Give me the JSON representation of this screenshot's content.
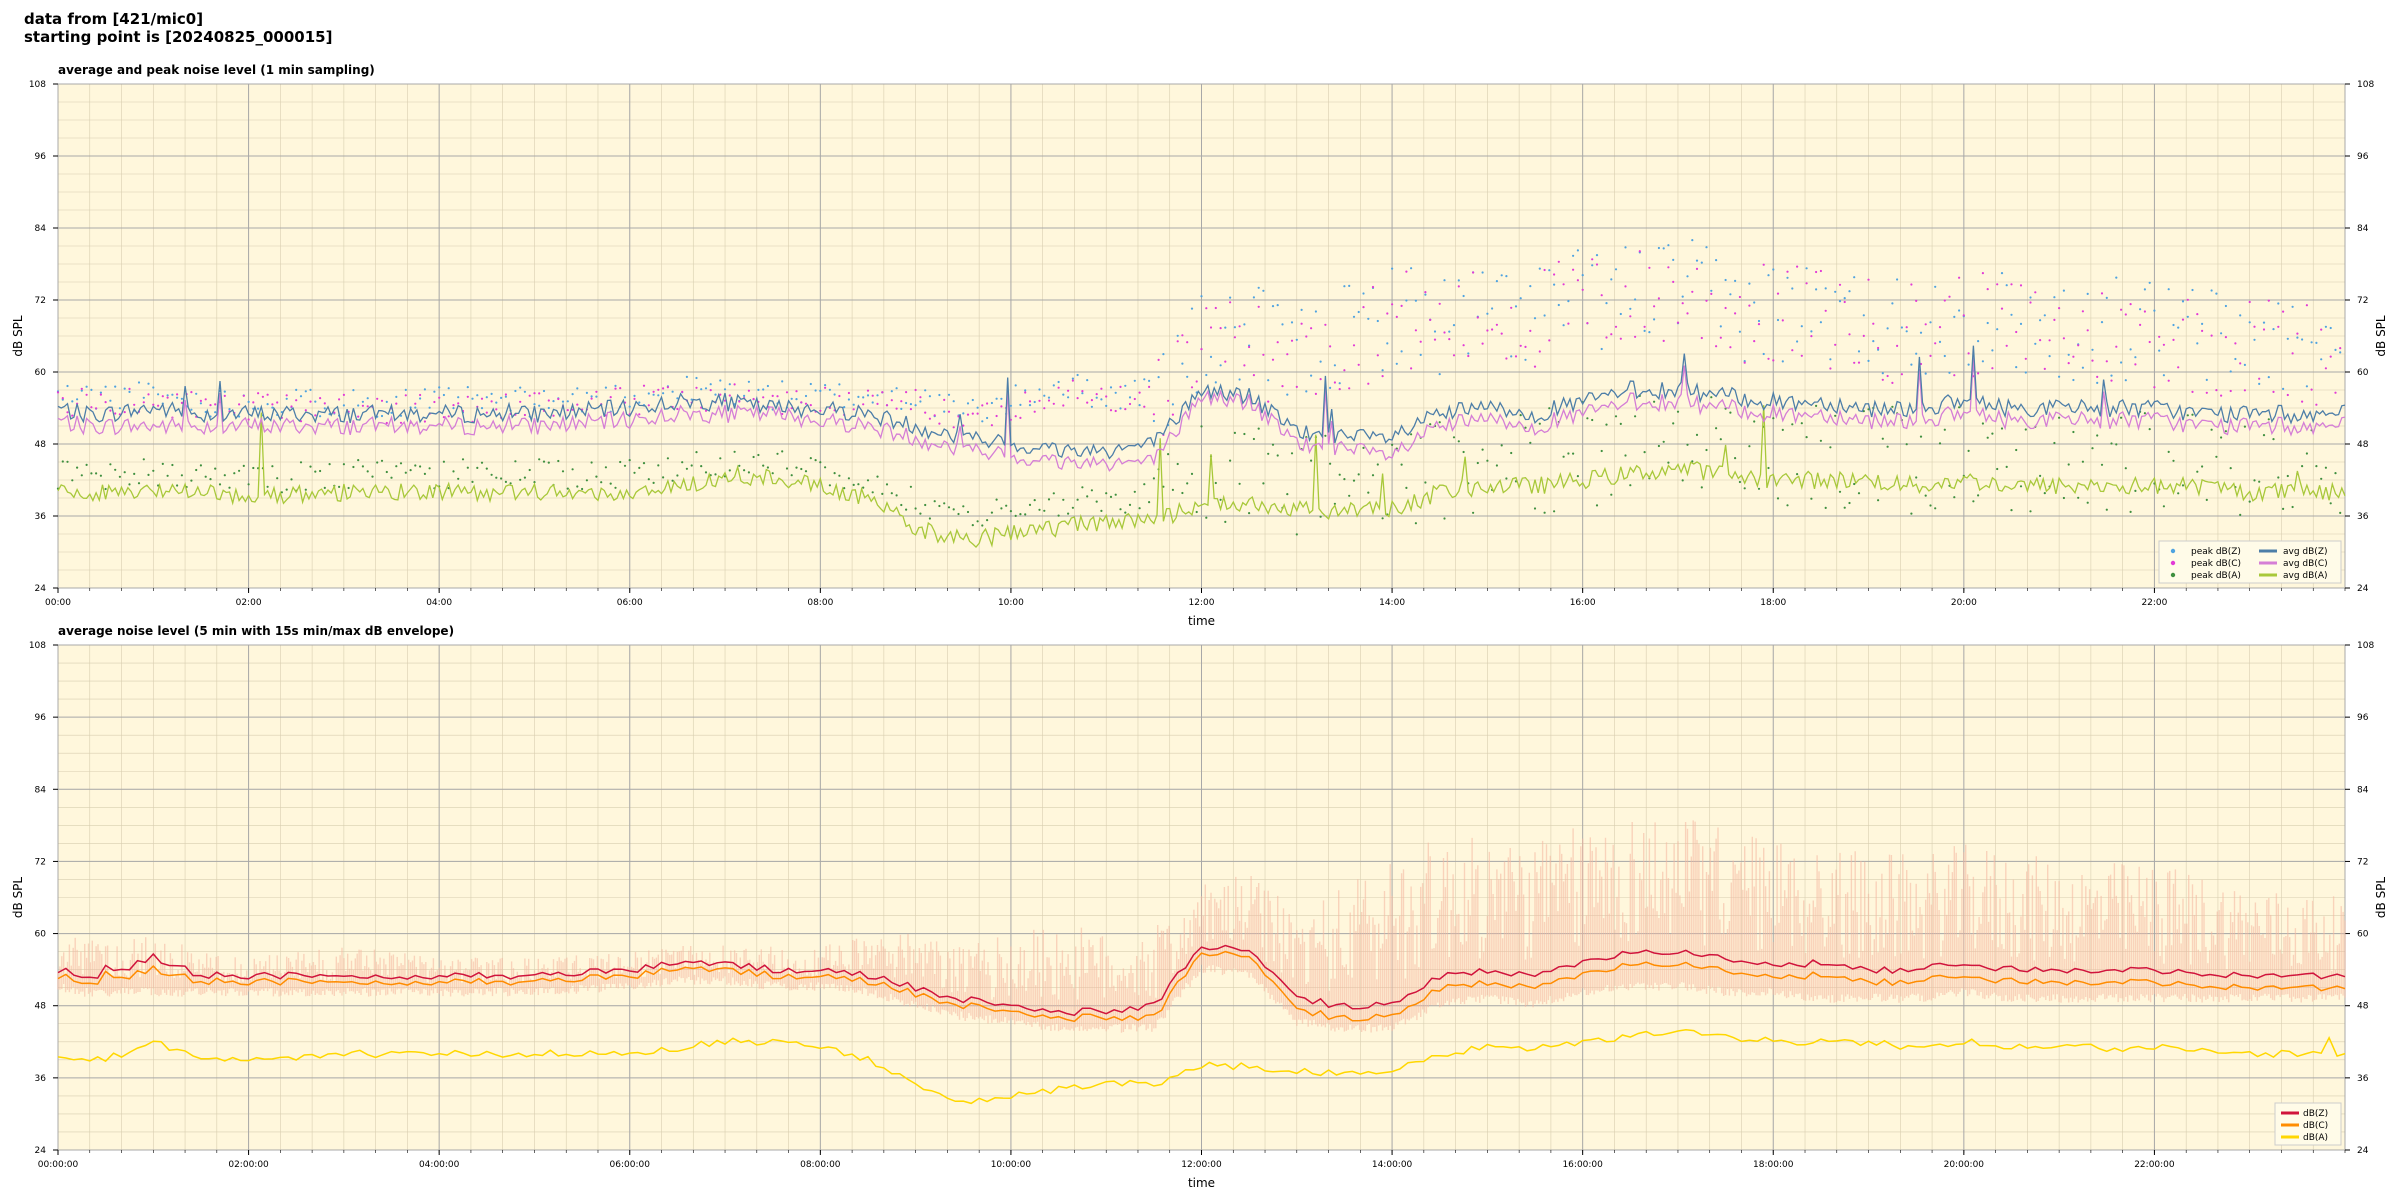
{
  "header": {
    "line1": "data from [421/mic0]",
    "line2": "starting point is [20240825_000015]"
  },
  "colors": {
    "plot_bg": "#fff7dc",
    "zpeak": "#4fa3e0",
    "cpeak": "#e23ad6",
    "apeak": "#3f8f3f",
    "zavg": "#4d7ea8",
    "cavg": "#d57ed6",
    "aavg": "#a8c83a",
    "dbz": "#d0143c",
    "dbc": "#ff8c00",
    "dba": "#ffd700",
    "envelope": "#f5b7a0"
  },
  "chart_data": [
    {
      "type": "line",
      "title": "average and peak noise level (1 min sampling)",
      "xlabel": "time",
      "ylabel": "dB SPL",
      "ylim": [
        24,
        108
      ],
      "xlim_hours": [
        0,
        24
      ],
      "yticks": [
        24,
        36,
        48,
        60,
        72,
        84,
        96,
        108
      ],
      "xticks": [
        "00:00",
        "02:00",
        "04:00",
        "06:00",
        "08:00",
        "10:00",
        "12:00",
        "14:00",
        "16:00",
        "18:00",
        "20:00",
        "22:00"
      ],
      "grid": true,
      "legend_position": "bottom-right",
      "legend": [
        "peak dB(Z)",
        "peak dB(C)",
        "peak dB(A)",
        "avg dB(Z)",
        "avg dB(C)",
        "avg dB(A)"
      ],
      "x_hours": [
        0,
        0.25,
        0.5,
        1,
        1.5,
        2,
        3,
        4,
        5,
        6,
        6.5,
        7,
        7.5,
        8,
        8.5,
        9,
        9.5,
        10,
        10.5,
        11,
        11.5,
        12,
        12.5,
        13,
        13.5,
        14,
        14.5,
        15,
        15.5,
        16,
        16.5,
        17,
        17.5,
        18,
        18.5,
        19,
        19.5,
        20,
        20.5,
        21,
        21.5,
        22,
        22.5,
        23,
        24
      ],
      "series": [
        {
          "name": "avg dB(Z)",
          "values": [
            54,
            53,
            53,
            54,
            53,
            53,
            53,
            53,
            53,
            54,
            55,
            55,
            54,
            54,
            53,
            51,
            49,
            48,
            47,
            47,
            48,
            57,
            56,
            50,
            49,
            49,
            53,
            54,
            53,
            55,
            57,
            57,
            56,
            55,
            55,
            54,
            54,
            55,
            54,
            54,
            54,
            54,
            53,
            53,
            53
          ]
        },
        {
          "name": "avg dB(C)",
          "values": [
            52,
            51,
            51,
            51,
            51,
            51,
            51,
            51,
            51,
            52,
            53,
            53,
            53,
            52,
            51,
            49,
            47,
            46,
            45,
            45,
            45,
            56,
            55,
            48,
            47,
            46,
            51,
            52,
            51,
            53,
            55,
            55,
            54,
            53,
            53,
            52,
            52,
            53,
            52,
            52,
            52,
            52,
            51,
            51,
            51
          ]
        },
        {
          "name": "avg dB(A)",
          "values": [
            40,
            40,
            40,
            40,
            40,
            39,
            40,
            40,
            40,
            40,
            41,
            42,
            42,
            41,
            39,
            34,
            32,
            33,
            34,
            35,
            35,
            38,
            38,
            37,
            37,
            37,
            40,
            41,
            41,
            42,
            43,
            44,
            43,
            42,
            42,
            42,
            41,
            42,
            41,
            41,
            41,
            41,
            41,
            40,
            40
          ]
        },
        {
          "name": "peak dB(Z)",
          "values": [
            56,
            56,
            56,
            56,
            55,
            55,
            55,
            55,
            55,
            56,
            57,
            57,
            56,
            56,
            56,
            56,
            53,
            55,
            58,
            56,
            57,
            64,
            66,
            62,
            66,
            70,
            68,
            70,
            70,
            72,
            73,
            74,
            71,
            70,
            70,
            68,
            68,
            69,
            68,
            67,
            67,
            67,
            66,
            65,
            64
          ]
        },
        {
          "name": "peak dB(C)",
          "values": [
            55,
            55,
            55,
            55,
            54,
            54,
            54,
            54,
            54,
            55,
            56,
            56,
            55,
            55,
            55,
            55,
            52,
            54,
            57,
            55,
            56,
            63,
            65,
            61,
            65,
            69,
            67,
            69,
            69,
            71,
            72,
            73,
            70,
            69,
            69,
            67,
            67,
            68,
            67,
            66,
            66,
            66,
            65,
            64,
            63
          ]
        },
        {
          "name": "peak dB(A)",
          "values": [
            43,
            43,
            43,
            43,
            43,
            42,
            43,
            43,
            43,
            43,
            44,
            45,
            45,
            44,
            42,
            38,
            36,
            37,
            38,
            39,
            39,
            42,
            42,
            41,
            41,
            41,
            44,
            45,
            45,
            46,
            47,
            48,
            47,
            46,
            46,
            46,
            45,
            46,
            45,
            45,
            45,
            45,
            45,
            44,
            44
          ]
        }
      ]
    },
    {
      "type": "line",
      "title": "average noise level (5 min with 15s min/max dB envelope)",
      "xlabel": "time",
      "ylabel": "dB SPL",
      "ylim": [
        24,
        108
      ],
      "xlim_hours": [
        0,
        24
      ],
      "yticks": [
        24,
        36,
        48,
        60,
        72,
        84,
        96,
        108
      ],
      "xticks": [
        "00:00:00",
        "02:00:00",
        "04:00:00",
        "06:00:00",
        "08:00:00",
        "10:00:00",
        "12:00:00",
        "14:00:00",
        "16:00:00",
        "18:00:00",
        "20:00:00",
        "22:00:00"
      ],
      "grid": true,
      "legend_position": "bottom-right",
      "legend": [
        "dB(Z)",
        "dB(C)",
        "dB(A)"
      ],
      "x_hours": [
        0,
        0.25,
        0.5,
        1,
        1.5,
        2,
        3,
        4,
        5,
        6,
        6.5,
        7,
        7.5,
        8,
        8.5,
        9,
        9.5,
        10,
        10.5,
        11,
        11.5,
        12,
        12.5,
        13,
        13.5,
        14,
        14.5,
        15,
        15.5,
        16,
        16.5,
        17,
        17.5,
        18,
        18.5,
        19,
        19.5,
        20,
        20.5,
        21,
        21.5,
        22,
        22.5,
        23,
        24
      ],
      "series": [
        {
          "name": "dB(Z)",
          "values": [
            54,
            53,
            53,
            56,
            53,
            53,
            53,
            53,
            53,
            54,
            55,
            55,
            54,
            54,
            53,
            51,
            49,
            48,
            47,
            47,
            48,
            58,
            57,
            49,
            48,
            48,
            53,
            54,
            53,
            55,
            57,
            57,
            56,
            55,
            55,
            54,
            54,
            55,
            54,
            54,
            54,
            54,
            53,
            53,
            53
          ]
        },
        {
          "name": "dB(C)",
          "values": [
            53,
            52,
            52,
            54,
            52,
            52,
            52,
            52,
            52,
            53,
            54,
            54,
            53,
            53,
            52,
            50,
            48,
            47,
            46,
            46,
            46,
            57,
            56,
            47,
            46,
            46,
            51,
            52,
            51,
            53,
            55,
            55,
            54,
            53,
            53,
            52,
            52,
            53,
            52,
            52,
            52,
            52,
            51,
            51,
            51
          ]
        },
        {
          "name": "dB(A)",
          "values": [
            40,
            39,
            39,
            42,
            39,
            39,
            40,
            40,
            40,
            40,
            41,
            42,
            42,
            41,
            39,
            35,
            32,
            33,
            34,
            35,
            35,
            38,
            38,
            37,
            37,
            37,
            40,
            41,
            41,
            42,
            43,
            44,
            43,
            42,
            42,
            42,
            41,
            42,
            41,
            41,
            41,
            41,
            41,
            40,
            40
          ]
        }
      ],
      "envelope_min": [
        52,
        51,
        51,
        51,
        51,
        51,
        51,
        51,
        51,
        52,
        53,
        53,
        52,
        52,
        51,
        49,
        47,
        46,
        45,
        45,
        45,
        55,
        54,
        46,
        45,
        45,
        49,
        50,
        49,
        51,
        52,
        52,
        51,
        51,
        50,
        50,
        50,
        51,
        50,
        50,
        50,
        50,
        50,
        50,
        50
      ],
      "envelope_max": [
        58,
        60,
        58,
        60,
        57,
        56,
        58,
        56,
        56,
        57,
        58,
        58,
        58,
        58,
        60,
        60,
        58,
        60,
        62,
        60,
        61,
        68,
        70,
        64,
        68,
        74,
        76,
        76,
        76,
        78,
        80,
        80,
        78,
        76,
        75,
        74,
        73,
        75,
        74,
        72,
        72,
        72,
        70,
        68,
        66
      ]
    }
  ]
}
